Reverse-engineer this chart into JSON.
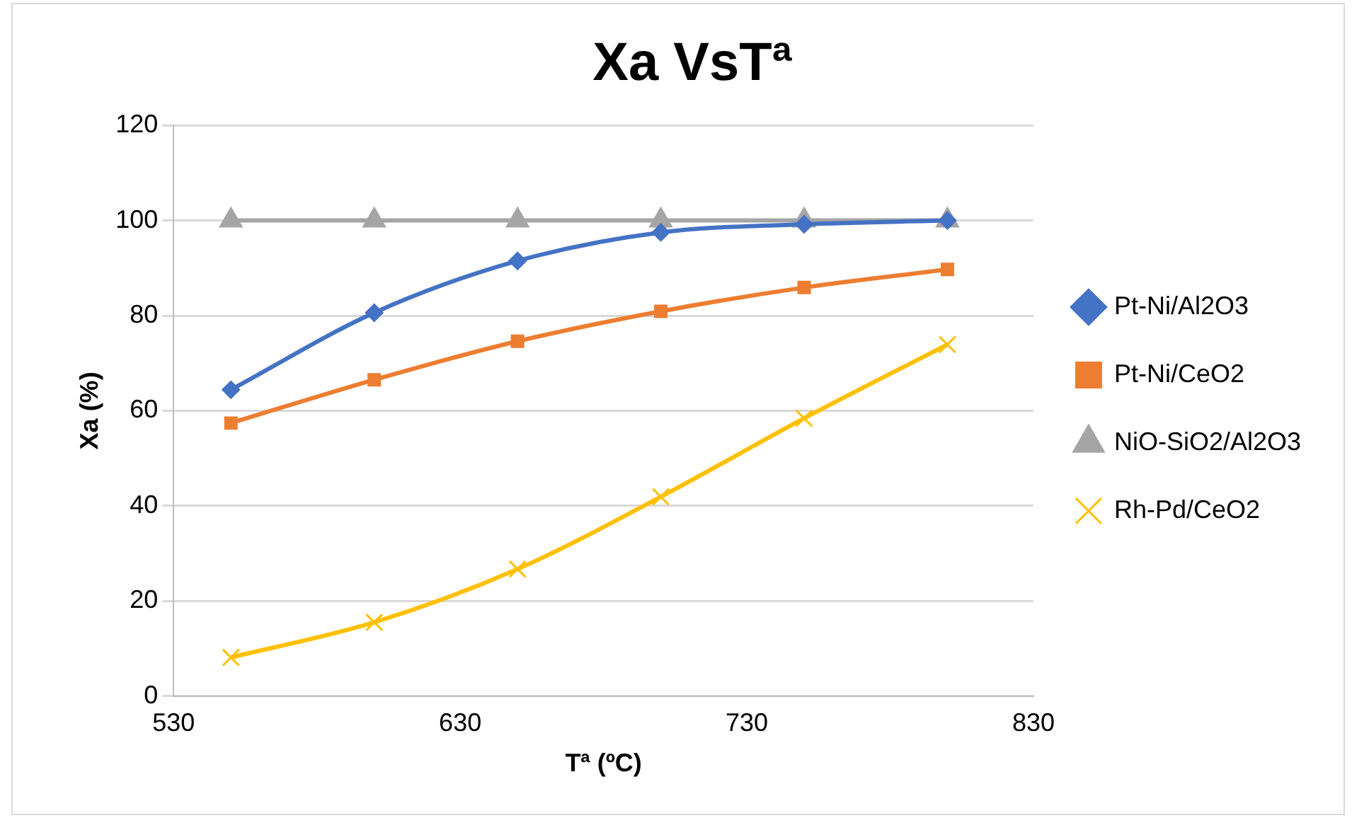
{
  "chart_data": {
    "type": "line",
    "title": "Xa VsTª",
    "xlabel": "Tª (ºC)",
    "ylabel": "Xa (%)",
    "x": [
      550,
      600,
      650,
      700,
      750,
      800
    ],
    "xlim": [
      530,
      830
    ],
    "xticks": [
      530,
      630,
      730,
      830
    ],
    "ylim": [
      0,
      120
    ],
    "yticks": [
      0,
      20,
      40,
      60,
      80,
      100,
      120
    ],
    "grid": "y",
    "legend": "right",
    "series": [
      {
        "name": "Pt-Ni/Al2O3",
        "color": "#4472c4",
        "marker": "diamond",
        "values": [
          64.4,
          80.6,
          91.5,
          97.5,
          99.2,
          100
        ]
      },
      {
        "name": "Pt-Ni/CeO2",
        "color": "#ed7d31",
        "marker": "square",
        "values": [
          57.4,
          66.5,
          74.6,
          80.9,
          85.9,
          89.7
        ]
      },
      {
        "name": "NiO-SiO2/Al2O3",
        "color": "#a5a5a5",
        "marker": "triangle",
        "values": [
          100,
          100,
          100,
          100,
          100,
          100
        ]
      },
      {
        "name": "Rh-Pd/CeO2",
        "color": "#ffc000",
        "marker": "cross",
        "values": [
          8.1,
          15.5,
          26.7,
          41.9,
          58.4,
          73.9
        ]
      }
    ]
  }
}
